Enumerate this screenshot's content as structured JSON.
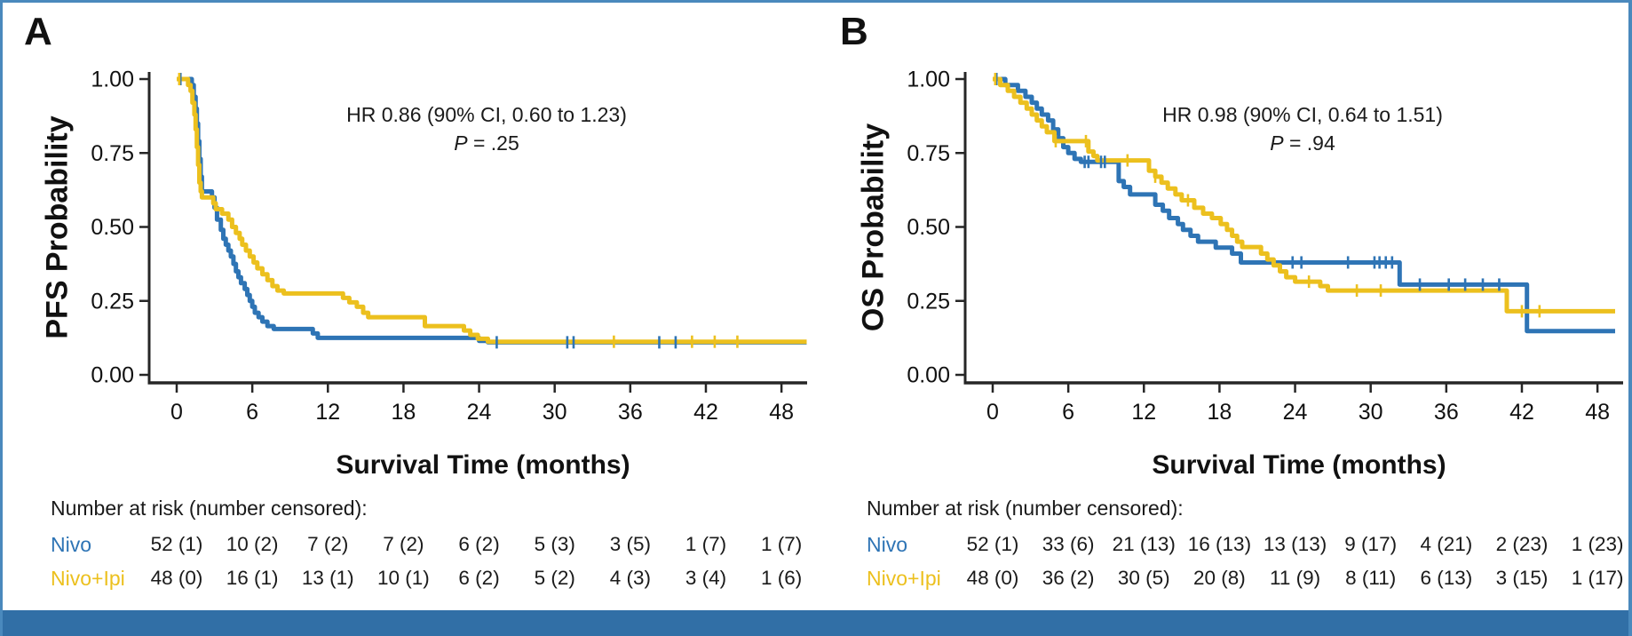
{
  "figure": {
    "frame_border_color": "#4A89BD",
    "bottom_bar_color": "#316FA6",
    "axis_color": "#262626",
    "background": "#ffffff"
  },
  "chart_data": [
    {
      "panel_label": "A",
      "type": "line",
      "subtype": "kaplan-meier-step",
      "xlabel": "Survival Time (months)",
      "ylabel": "PFS Probability",
      "xlim": [
        0,
        50
      ],
      "ylim": [
        0,
        1
      ],
      "grid": false,
      "x_ticks": [
        0,
        6,
        12,
        18,
        24,
        30,
        36,
        42,
        48
      ],
      "y_ticks": [
        {
          "label": "1.00",
          "value": 1.0
        },
        {
          "label": "0.75",
          "value": 0.75
        },
        {
          "label": "0.50",
          "value": 0.5
        },
        {
          "label": "0.25",
          "value": 0.25
        },
        {
          "label": "0.00",
          "value": 0.0
        }
      ],
      "annotation": {
        "line1": "HR 0.86 (90% CI, 0.60 to 1.23)",
        "p_italic": "P",
        "p_rest": " = .25"
      },
      "series": [
        {
          "name": "Nivo",
          "color": "#2E74B5",
          "end": 50,
          "steps": [
            [
              0,
              1.0
            ],
            [
              1.2,
              0.98
            ],
            [
              1.35,
              0.94
            ],
            [
              1.5,
              0.9
            ],
            [
              1.6,
              0.85
            ],
            [
              1.7,
              0.79
            ],
            [
              1.8,
              0.73
            ],
            [
              1.9,
              0.67
            ],
            [
              2.0,
              0.62
            ],
            [
              2.8,
              0.6
            ],
            [
              3.0,
              0.565
            ],
            [
              3.2,
              0.525
            ],
            [
              3.5,
              0.49
            ],
            [
              3.7,
              0.46
            ],
            [
              3.9,
              0.44
            ],
            [
              4.1,
              0.42
            ],
            [
              4.3,
              0.4
            ],
            [
              4.5,
              0.375
            ],
            [
              4.7,
              0.35
            ],
            [
              4.9,
              0.33
            ],
            [
              5.1,
              0.31
            ],
            [
              5.4,
              0.29
            ],
            [
              5.6,
              0.27
            ],
            [
              5.8,
              0.25
            ],
            [
              6.0,
              0.23
            ],
            [
              6.2,
              0.21
            ],
            [
              6.5,
              0.195
            ],
            [
              6.8,
              0.18
            ],
            [
              7.2,
              0.165
            ],
            [
              7.7,
              0.155
            ],
            [
              10.8,
              0.14
            ],
            [
              11.2,
              0.125
            ],
            [
              24.0,
              0.115
            ],
            [
              24.7,
              0.11
            ]
          ],
          "censor_times": [
            0.3,
            25.4,
            31.0,
            31.5,
            38.3,
            39.6
          ]
        },
        {
          "name": "Nivo+Ipi",
          "color": "#ECC01E",
          "end": 50,
          "steps": [
            [
              0,
              1.0
            ],
            [
              0.9,
              0.98
            ],
            [
              1.1,
              0.96
            ],
            [
              1.25,
              0.92
            ],
            [
              1.4,
              0.88
            ],
            [
              1.5,
              0.83
            ],
            [
              1.6,
              0.77
            ],
            [
              1.7,
              0.71
            ],
            [
              1.8,
              0.65
            ],
            [
              1.9,
              0.62
            ],
            [
              2.0,
              0.6
            ],
            [
              2.9,
              0.58
            ],
            [
              3.1,
              0.56
            ],
            [
              3.6,
              0.545
            ],
            [
              4.1,
              0.525
            ],
            [
              4.4,
              0.5
            ],
            [
              4.7,
              0.48
            ],
            [
              5.0,
              0.46
            ],
            [
              5.2,
              0.44
            ],
            [
              5.5,
              0.42
            ],
            [
              5.8,
              0.4
            ],
            [
              6.1,
              0.38
            ],
            [
              6.4,
              0.36
            ],
            [
              6.8,
              0.34
            ],
            [
              7.2,
              0.32
            ],
            [
              7.6,
              0.3
            ],
            [
              8.0,
              0.285
            ],
            [
              8.5,
              0.275
            ],
            [
              13.2,
              0.26
            ],
            [
              13.7,
              0.245
            ],
            [
              14.3,
              0.23
            ],
            [
              14.8,
              0.21
            ],
            [
              15.2,
              0.195
            ],
            [
              19.7,
              0.165
            ],
            [
              22.8,
              0.15
            ],
            [
              23.3,
              0.135
            ],
            [
              23.9,
              0.122
            ],
            [
              24.7,
              0.112
            ]
          ],
          "censor_times": [
            0.2,
            34.7,
            40.9,
            42.7,
            44.5
          ]
        }
      ],
      "risk_table": {
        "header": "Number at risk (number censored):",
        "rows": [
          {
            "name": "Nivo",
            "color": "#2E74B5",
            "values": [
              "52 (1)",
              "10 (2)",
              "7 (2)",
              "7 (2)",
              "6 (2)",
              "5 (3)",
              "3 (5)",
              "1 (7)",
              "1 (7)"
            ]
          },
          {
            "name": "Nivo+Ipi",
            "color": "#ECC01E",
            "values": [
              "48 (0)",
              "16 (1)",
              "13 (1)",
              "10 (1)",
              "6 (2)",
              "5 (2)",
              "4 (3)",
              "3 (4)",
              "1 (6)"
            ]
          }
        ]
      }
    },
    {
      "panel_label": "B",
      "type": "line",
      "subtype": "kaplan-meier-step",
      "xlabel": "Survival Time (months)",
      "ylabel": "OS Probability",
      "xlim": [
        0,
        50
      ],
      "ylim": [
        0,
        1
      ],
      "grid": false,
      "x_ticks": [
        0,
        6,
        12,
        18,
        24,
        30,
        36,
        42,
        48
      ],
      "y_ticks": [
        {
          "label": "1.00",
          "value": 1.0
        },
        {
          "label": "0.75",
          "value": 0.75
        },
        {
          "label": "0.50",
          "value": 0.5
        },
        {
          "label": "0.25",
          "value": 0.25
        },
        {
          "label": "0.00",
          "value": 0.0
        }
      ],
      "annotation": {
        "line1": "HR 0.98 (90% CI, 0.64 to 1.51)",
        "p_italic": "P",
        "p_rest": " = .94"
      },
      "series": [
        {
          "name": "Nivo",
          "color": "#2E74B5",
          "end": 49.4,
          "steps": [
            [
              0,
              1.0
            ],
            [
              1.0,
              0.98
            ],
            [
              2.0,
              0.96
            ],
            [
              2.6,
              0.94
            ],
            [
              3.1,
              0.92
            ],
            [
              3.5,
              0.9
            ],
            [
              3.9,
              0.88
            ],
            [
              4.4,
              0.86
            ],
            [
              4.8,
              0.83
            ],
            [
              5.2,
              0.8
            ],
            [
              5.6,
              0.77
            ],
            [
              6.0,
              0.75
            ],
            [
              6.5,
              0.73
            ],
            [
              7.0,
              0.72
            ],
            [
              10.0,
              0.655
            ],
            [
              10.4,
              0.635
            ],
            [
              10.9,
              0.61
            ],
            [
              12.9,
              0.575
            ],
            [
              13.5,
              0.555
            ],
            [
              14.0,
              0.53
            ],
            [
              14.7,
              0.51
            ],
            [
              15.1,
              0.49
            ],
            [
              15.7,
              0.47
            ],
            [
              16.3,
              0.45
            ],
            [
              17.7,
              0.43
            ],
            [
              19.0,
              0.41
            ],
            [
              19.7,
              0.38
            ],
            [
              32.3,
              0.305
            ],
            [
              42.4,
              0.148
            ]
          ],
          "censor_times": [
            0.3,
            7.3,
            7.6,
            8.6,
            8.9,
            23.8,
            24.5,
            28.2,
            30.3,
            30.7,
            31.2,
            31.7,
            33.9,
            36.2,
            37.5,
            38.9,
            40.2
          ]
        },
        {
          "name": "Nivo+Ipi",
          "color": "#ECC01E",
          "end": 49.4,
          "steps": [
            [
              0,
              1.0
            ],
            [
              0.6,
              0.98
            ],
            [
              1.2,
              0.96
            ],
            [
              1.7,
              0.94
            ],
            [
              2.2,
              0.92
            ],
            [
              2.7,
              0.9
            ],
            [
              3.1,
              0.88
            ],
            [
              3.5,
              0.86
            ],
            [
              3.9,
              0.84
            ],
            [
              4.3,
              0.82
            ],
            [
              4.9,
              0.79
            ],
            [
              7.6,
              0.755
            ],
            [
              8.0,
              0.74
            ],
            [
              8.3,
              0.725
            ],
            [
              12.4,
              0.69
            ],
            [
              12.9,
              0.67
            ],
            [
              13.4,
              0.65
            ],
            [
              13.9,
              0.63
            ],
            [
              14.5,
              0.61
            ],
            [
              15.0,
              0.59
            ],
            [
              16.0,
              0.565
            ],
            [
              16.7,
              0.545
            ],
            [
              17.4,
              0.53
            ],
            [
              18.1,
              0.51
            ],
            [
              18.6,
              0.49
            ],
            [
              19.0,
              0.47
            ],
            [
              19.4,
              0.45
            ],
            [
              19.8,
              0.432
            ],
            [
              21.3,
              0.41
            ],
            [
              21.8,
              0.39
            ],
            [
              22.3,
              0.37
            ],
            [
              22.8,
              0.35
            ],
            [
              23.3,
              0.33
            ],
            [
              24.0,
              0.315
            ],
            [
              26.0,
              0.3
            ],
            [
              26.6,
              0.285
            ],
            [
              40.8,
              0.215
            ]
          ],
          "censor_times": [
            0.2,
            5.0,
            7.4,
            10.7,
            12.9,
            15.5,
            25.1,
            28.9,
            30.8,
            42.0,
            43.4
          ]
        }
      ],
      "risk_table": {
        "header": "Number at risk (number censored):",
        "rows": [
          {
            "name": "Nivo",
            "color": "#2E74B5",
            "values": [
              "52 (1)",
              "33 (6)",
              "21 (13)",
              "16 (13)",
              "13 (13)",
              "9 (17)",
              "4 (21)",
              "2 (23)",
              "1 (23)"
            ]
          },
          {
            "name": "Nivo+Ipi",
            "color": "#ECC01E",
            "values": [
              "48 (0)",
              "36 (2)",
              "30 (5)",
              "20 (8)",
              "11 (9)",
              "8 (11)",
              "6 (13)",
              "3 (15)",
              "1 (17)"
            ]
          }
        ]
      }
    }
  ]
}
